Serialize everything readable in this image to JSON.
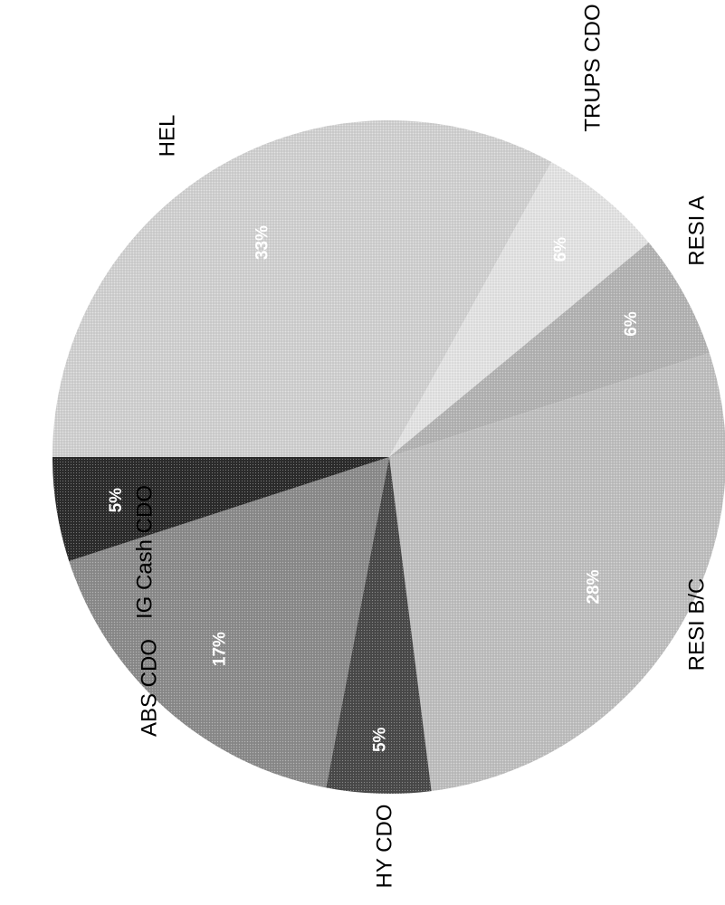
{
  "chart_data": {
    "type": "pie",
    "title": "",
    "slices": [
      {
        "category": "HEL",
        "value": 33,
        "value_label": "33%",
        "color": "#d2d2d2"
      },
      {
        "category": "TRUPS CDO",
        "value": 6,
        "value_label": "6%",
        "color": "#e4e4e4"
      },
      {
        "category": "RESI A",
        "value": 6,
        "value_label": "6%",
        "color": "#b4b4b4"
      },
      {
        "category": "RESI B/C",
        "value": 28,
        "value_label": "28%",
        "color": "#c0c0c0"
      },
      {
        "category": "HY CDO",
        "value": 5,
        "value_label": "5%",
        "color": "#4a4a4a"
      },
      {
        "category": "ABS CDO",
        "value": 17,
        "value_label": "17%",
        "color": "#8c8c8c"
      },
      {
        "category": "IG Cash CDO",
        "value": 5,
        "value_label": "5%",
        "color": "#2c2c2c"
      }
    ]
  }
}
